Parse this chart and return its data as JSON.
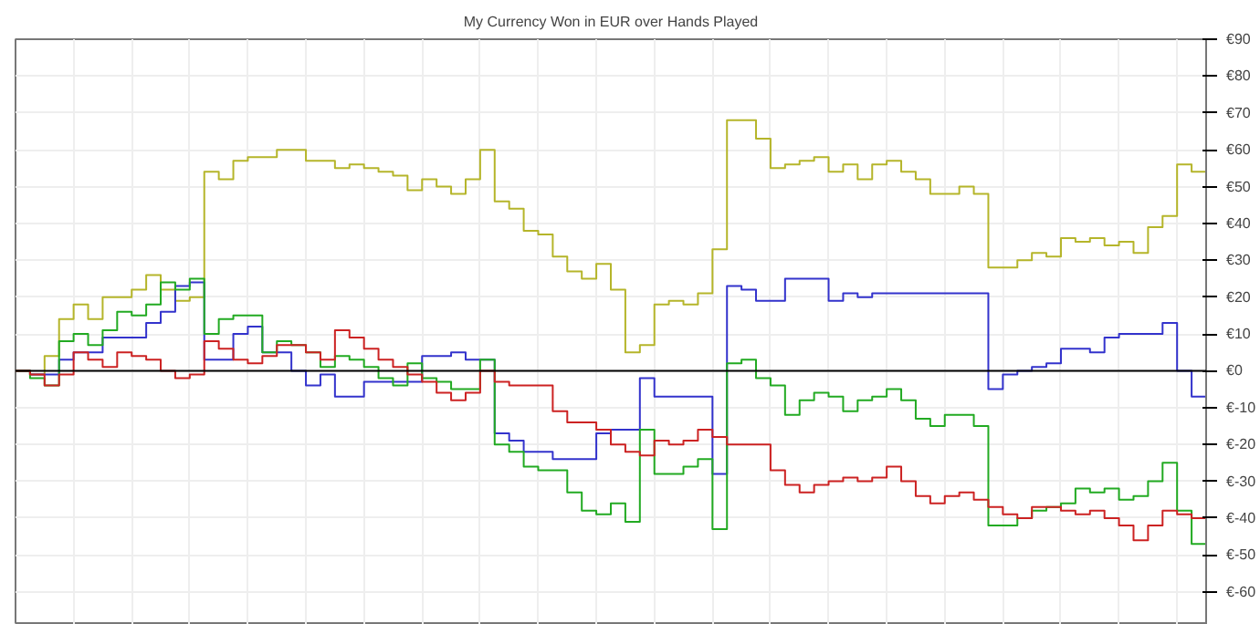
{
  "chart_data": {
    "type": "step",
    "title": "My Currency Won in EUR over Hands Played",
    "categories": [
      null,
      null,
      null,
      null,
      null,
      null,
      null,
      null,
      null,
      null,
      null,
      null,
      null,
      null,
      null,
      null,
      null,
      null,
      null,
      null,
      null,
      null,
      null,
      null,
      null,
      null,
      null,
      null,
      null,
      null,
      null,
      null,
      null,
      null,
      null,
      null,
      null,
      null,
      null,
      null,
      null,
      null,
      null,
      null,
      null,
      null,
      null,
      null,
      null,
      null,
      null,
      null,
      null,
      null,
      null,
      null,
      null,
      null,
      null,
      null,
      null,
      null,
      null,
      null,
      null,
      null,
      null,
      null,
      null,
      null,
      null,
      null,
      null,
      null,
      null,
      null,
      null,
      null,
      null,
      null,
      null,
      null,
      null
    ],
    "series": [
      {
        "color": "#b5b52a",
        "values": [
          0,
          -1,
          4,
          14,
          18,
          14,
          20,
          20,
          22,
          26,
          22,
          19,
          20,
          54,
          52,
          57,
          58,
          58,
          60,
          60,
          57,
          57,
          55,
          56,
          55,
          54,
          53,
          49,
          52,
          50,
          48,
          52,
          60,
          46,
          44,
          38,
          37,
          31,
          27,
          25,
          29,
          22,
          5,
          7,
          18,
          19,
          18,
          21,
          33,
          68,
          68,
          63,
          55,
          56,
          57,
          58,
          54,
          56,
          52,
          56,
          57,
          54,
          52,
          48,
          48,
          50,
          48,
          28,
          28,
          30,
          32,
          31,
          36,
          35,
          36,
          34,
          35,
          32,
          39,
          42,
          56,
          54,
          53
        ]
      },
      {
        "color": "#3333cc",
        "values": [
          0,
          -1,
          -1,
          3,
          5,
          5,
          9,
          9,
          9,
          13,
          16,
          23,
          24,
          3,
          3,
          10,
          12,
          5,
          5,
          0,
          -4,
          -1,
          -7,
          -7,
          -3,
          -3,
          -3,
          -3,
          4,
          4,
          5,
          3,
          3,
          -17,
          -19,
          -22,
          -22,
          -24,
          -24,
          -24,
          -17,
          -16,
          -16,
          -2,
          -7,
          -7,
          -7,
          -7,
          -28,
          23,
          22,
          19,
          19,
          25,
          25,
          25,
          19,
          21,
          20,
          21,
          21,
          21,
          21,
          21,
          21,
          21,
          21,
          -5,
          -1,
          0,
          1,
          2,
          6,
          6,
          5,
          9,
          10,
          10,
          10,
          13,
          0,
          -7,
          -12
        ]
      },
      {
        "color": "#22aa22",
        "values": [
          0,
          -2,
          -4,
          8,
          10,
          7,
          11,
          16,
          15,
          18,
          24,
          22,
          25,
          10,
          14,
          15,
          15,
          5,
          8,
          7,
          5,
          1,
          4,
          3,
          1,
          -2,
          -4,
          2,
          -2,
          -3,
          -5,
          -5,
          3,
          -20,
          -22,
          -26,
          -27,
          -27,
          -33,
          -38,
          -39,
          -36,
          -41,
          -16,
          -28,
          -28,
          -26,
          -24,
          -43,
          2,
          3,
          -2,
          -4,
          -12,
          -8,
          -6,
          -7,
          -11,
          -8,
          -7,
          -5,
          -8,
          -13,
          -15,
          -12,
          -12,
          -15,
          -42,
          -42,
          -40,
          -38,
          -37,
          -36,
          -32,
          -33,
          -32,
          -35,
          -34,
          -30,
          -25,
          -38,
          -47,
          -53
        ]
      },
      {
        "color": "#cc2222",
        "values": [
          0,
          -1,
          -4,
          -1,
          5,
          3,
          1,
          5,
          4,
          3,
          0,
          -2,
          -1,
          8,
          6,
          3,
          2,
          4,
          7,
          7,
          5,
          3,
          11,
          9,
          6,
          3,
          1,
          -1,
          -3,
          -6,
          -8,
          -6,
          0,
          -3,
          -4,
          -4,
          -4,
          -11,
          -14,
          -14,
          -16,
          -20,
          -22,
          -23,
          -19,
          -20,
          -19,
          -16,
          -18,
          -20,
          -20,
          -20,
          -27,
          -31,
          -33,
          -31,
          -30,
          -29,
          -30,
          -29,
          -26,
          -30,
          -34,
          -36,
          -34,
          -33,
          -35,
          -37,
          -39,
          -40,
          -37,
          -37,
          -38,
          -39,
          -38,
          -40,
          -42,
          -46,
          -42,
          -38,
          -39,
          -40,
          -42
        ]
      }
    ],
    "ylim": [
      -69,
      90
    ],
    "yticks": [
      {
        "value": -60,
        "label": "€-60"
      },
      {
        "value": -50,
        "label": "€-50"
      },
      {
        "value": -40,
        "label": "€-40"
      },
      {
        "value": -30,
        "label": "€-30"
      },
      {
        "value": -20,
        "label": "€-20"
      },
      {
        "value": -10,
        "label": "€-10"
      },
      {
        "value": 0,
        "label": "€0"
      },
      {
        "value": 10,
        "label": "€10"
      },
      {
        "value": 20,
        "label": "€20"
      },
      {
        "value": 30,
        "label": "€30"
      },
      {
        "value": 40,
        "label": "€40"
      },
      {
        "value": 50,
        "label": "€50"
      },
      {
        "value": 60,
        "label": "€60"
      },
      {
        "value": 70,
        "label": "€70"
      },
      {
        "value": 80,
        "label": "€80"
      },
      {
        "value": 90,
        "label": "€90"
      }
    ],
    "grid": true,
    "tick_labels": "y",
    "ref_lines": [
      {
        "axis": "y",
        "value": 0,
        "color": "#000000"
      }
    ]
  }
}
